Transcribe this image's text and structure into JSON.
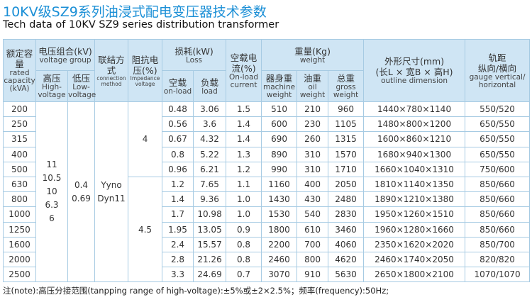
{
  "title": "10KV级SZ9系列油浸式配电变压器技术参数",
  "subtitle": "Tech data of 10KV SZ9 series distribution transformer",
  "table": {
    "columns": [
      {
        "zh": "额定容量",
        "en": "rated capacity (kVA)"
      },
      {
        "zh": "电压组合(kV)",
        "en": "voltage group",
        "sub": [
          {
            "zh": "高压",
            "en": "High-voltage"
          },
          {
            "zh": "低压",
            "en": "Low-voltage"
          }
        ]
      },
      {
        "zh": "联结方式",
        "en": "connection method"
      },
      {
        "zh": "阻抗电压(%)",
        "en": "Impedance voltage"
      },
      {
        "zh": "损耗(kW)",
        "en": "Loss",
        "sub": [
          {
            "zh": "空载",
            "en": "on-load"
          },
          {
            "zh": "负载",
            "en": "load"
          }
        ]
      },
      {
        "zh": "空载电流(%)",
        "en": "On-load current"
      },
      {
        "zh": "重量(Kg)",
        "en": "weight",
        "sub": [
          {
            "zh": "器身重",
            "en": "machine weight"
          },
          {
            "zh": "油重",
            "en": "oil weight"
          },
          {
            "zh": "总重",
            "en": "gross weight"
          }
        ]
      },
      {
        "zh": "外形尺寸(mm)",
        "zh2": "(长L × 宽B × 高H)",
        "en": "outline dimension"
      },
      {
        "zh": "轨距",
        "zh2": "纵向/横向",
        "en": "gauge vertical/ horizontal"
      }
    ],
    "high_voltage": [
      "11",
      "10.5",
      "10",
      "6.3",
      "6"
    ],
    "low_voltage": [
      "0.4",
      "0.69"
    ],
    "connection": [
      "Yyno",
      "Dyn11"
    ],
    "impedance": [
      "4",
      "4.5"
    ],
    "rows": [
      [
        "200",
        "0.48",
        "3.06",
        "1.5",
        "510",
        "210",
        "960",
        "1440×780×1140",
        "550/520"
      ],
      [
        "250",
        "0.56",
        "3.6",
        "1.4",
        "600",
        "230",
        "1105",
        "1480×800×1200",
        "650/550"
      ],
      [
        "315",
        "0.67",
        "4.32",
        "1.4",
        "690",
        "260",
        "1315",
        "1600×860×1210",
        "650/550"
      ],
      [
        "400",
        "0.8",
        "5.22",
        "1.3",
        "890",
        "310",
        "1570",
        "1680×940×1300",
        "650/550"
      ],
      [
        "500",
        "0.96",
        "6.21",
        "1.2",
        "990",
        "310",
        "1710",
        "1660×1040×1310",
        "750/600"
      ],
      [
        "630",
        "1.2",
        "7.65",
        "1.1",
        "1160",
        "400",
        "2050",
        "1810×1140×1350",
        "850/660"
      ],
      [
        "800",
        "1.4",
        "9.36",
        "1.0",
        "1430",
        "430",
        "2480",
        "1890×1210×1380",
        "850/660"
      ],
      [
        "1000",
        "1.7",
        "10.98",
        "1.0",
        "1530",
        "540",
        "2830",
        "1950×1260×1510",
        "850/660"
      ],
      [
        "1250",
        "1.95",
        "13.05",
        "0.9",
        "1800",
        "610",
        "3460",
        "1960×1280×1660",
        "850/660"
      ],
      [
        "1600",
        "2.4",
        "15.57",
        "0.8",
        "2200",
        "700",
        "4060",
        "2350×1620×2020",
        "850/700"
      ],
      [
        "2000",
        "2.8",
        "21.26",
        "0.8",
        "2460",
        "800",
        "4620",
        "2460×1740×2050",
        "820/820"
      ],
      [
        "2500",
        "3.3",
        "24.69",
        "0.7",
        "3070",
        "910",
        "5630",
        "2650×1800×2100",
        "1070/1070"
      ]
    ]
  },
  "note": "注(note):高压分接范围(tanpping range of high-voltage):±5%或±2×2.5%；频率(frequency):50Hz;"
}
